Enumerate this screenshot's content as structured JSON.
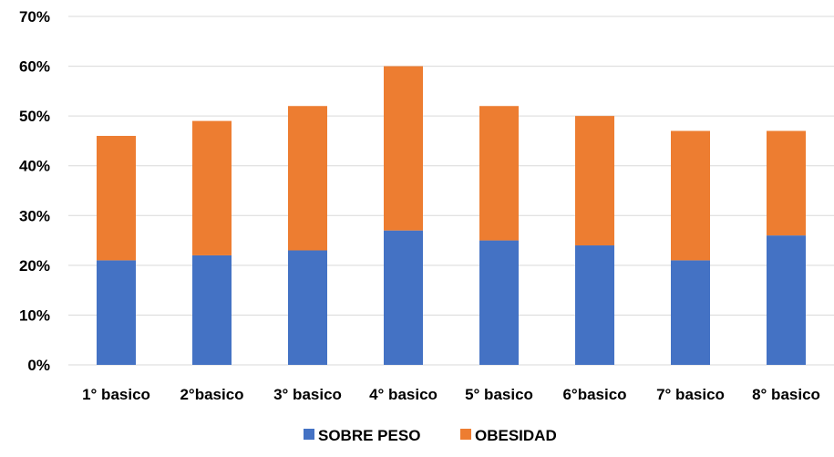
{
  "chart_data": {
    "type": "bar",
    "stacked": true,
    "categories": [
      "1° basico",
      "2°basico",
      "3° basico",
      "4° basico",
      "5° basico",
      "6°basico",
      "7° basico",
      "8° basico"
    ],
    "series": [
      {
        "name": "SOBRE PESO",
        "color": "#4472c4",
        "values": [
          21,
          22,
          23,
          27,
          25,
          24,
          21,
          26
        ]
      },
      {
        "name": "OBESIDAD",
        "color": "#ed7d31",
        "values": [
          25,
          27,
          29,
          33,
          27,
          26,
          26,
          21
        ]
      }
    ],
    "ylim": [
      0,
      70
    ],
    "yticks": [
      0,
      10,
      20,
      30,
      40,
      50,
      60,
      70
    ],
    "ytick_suffix": "%",
    "grid": true,
    "legend_position": "bottom"
  }
}
